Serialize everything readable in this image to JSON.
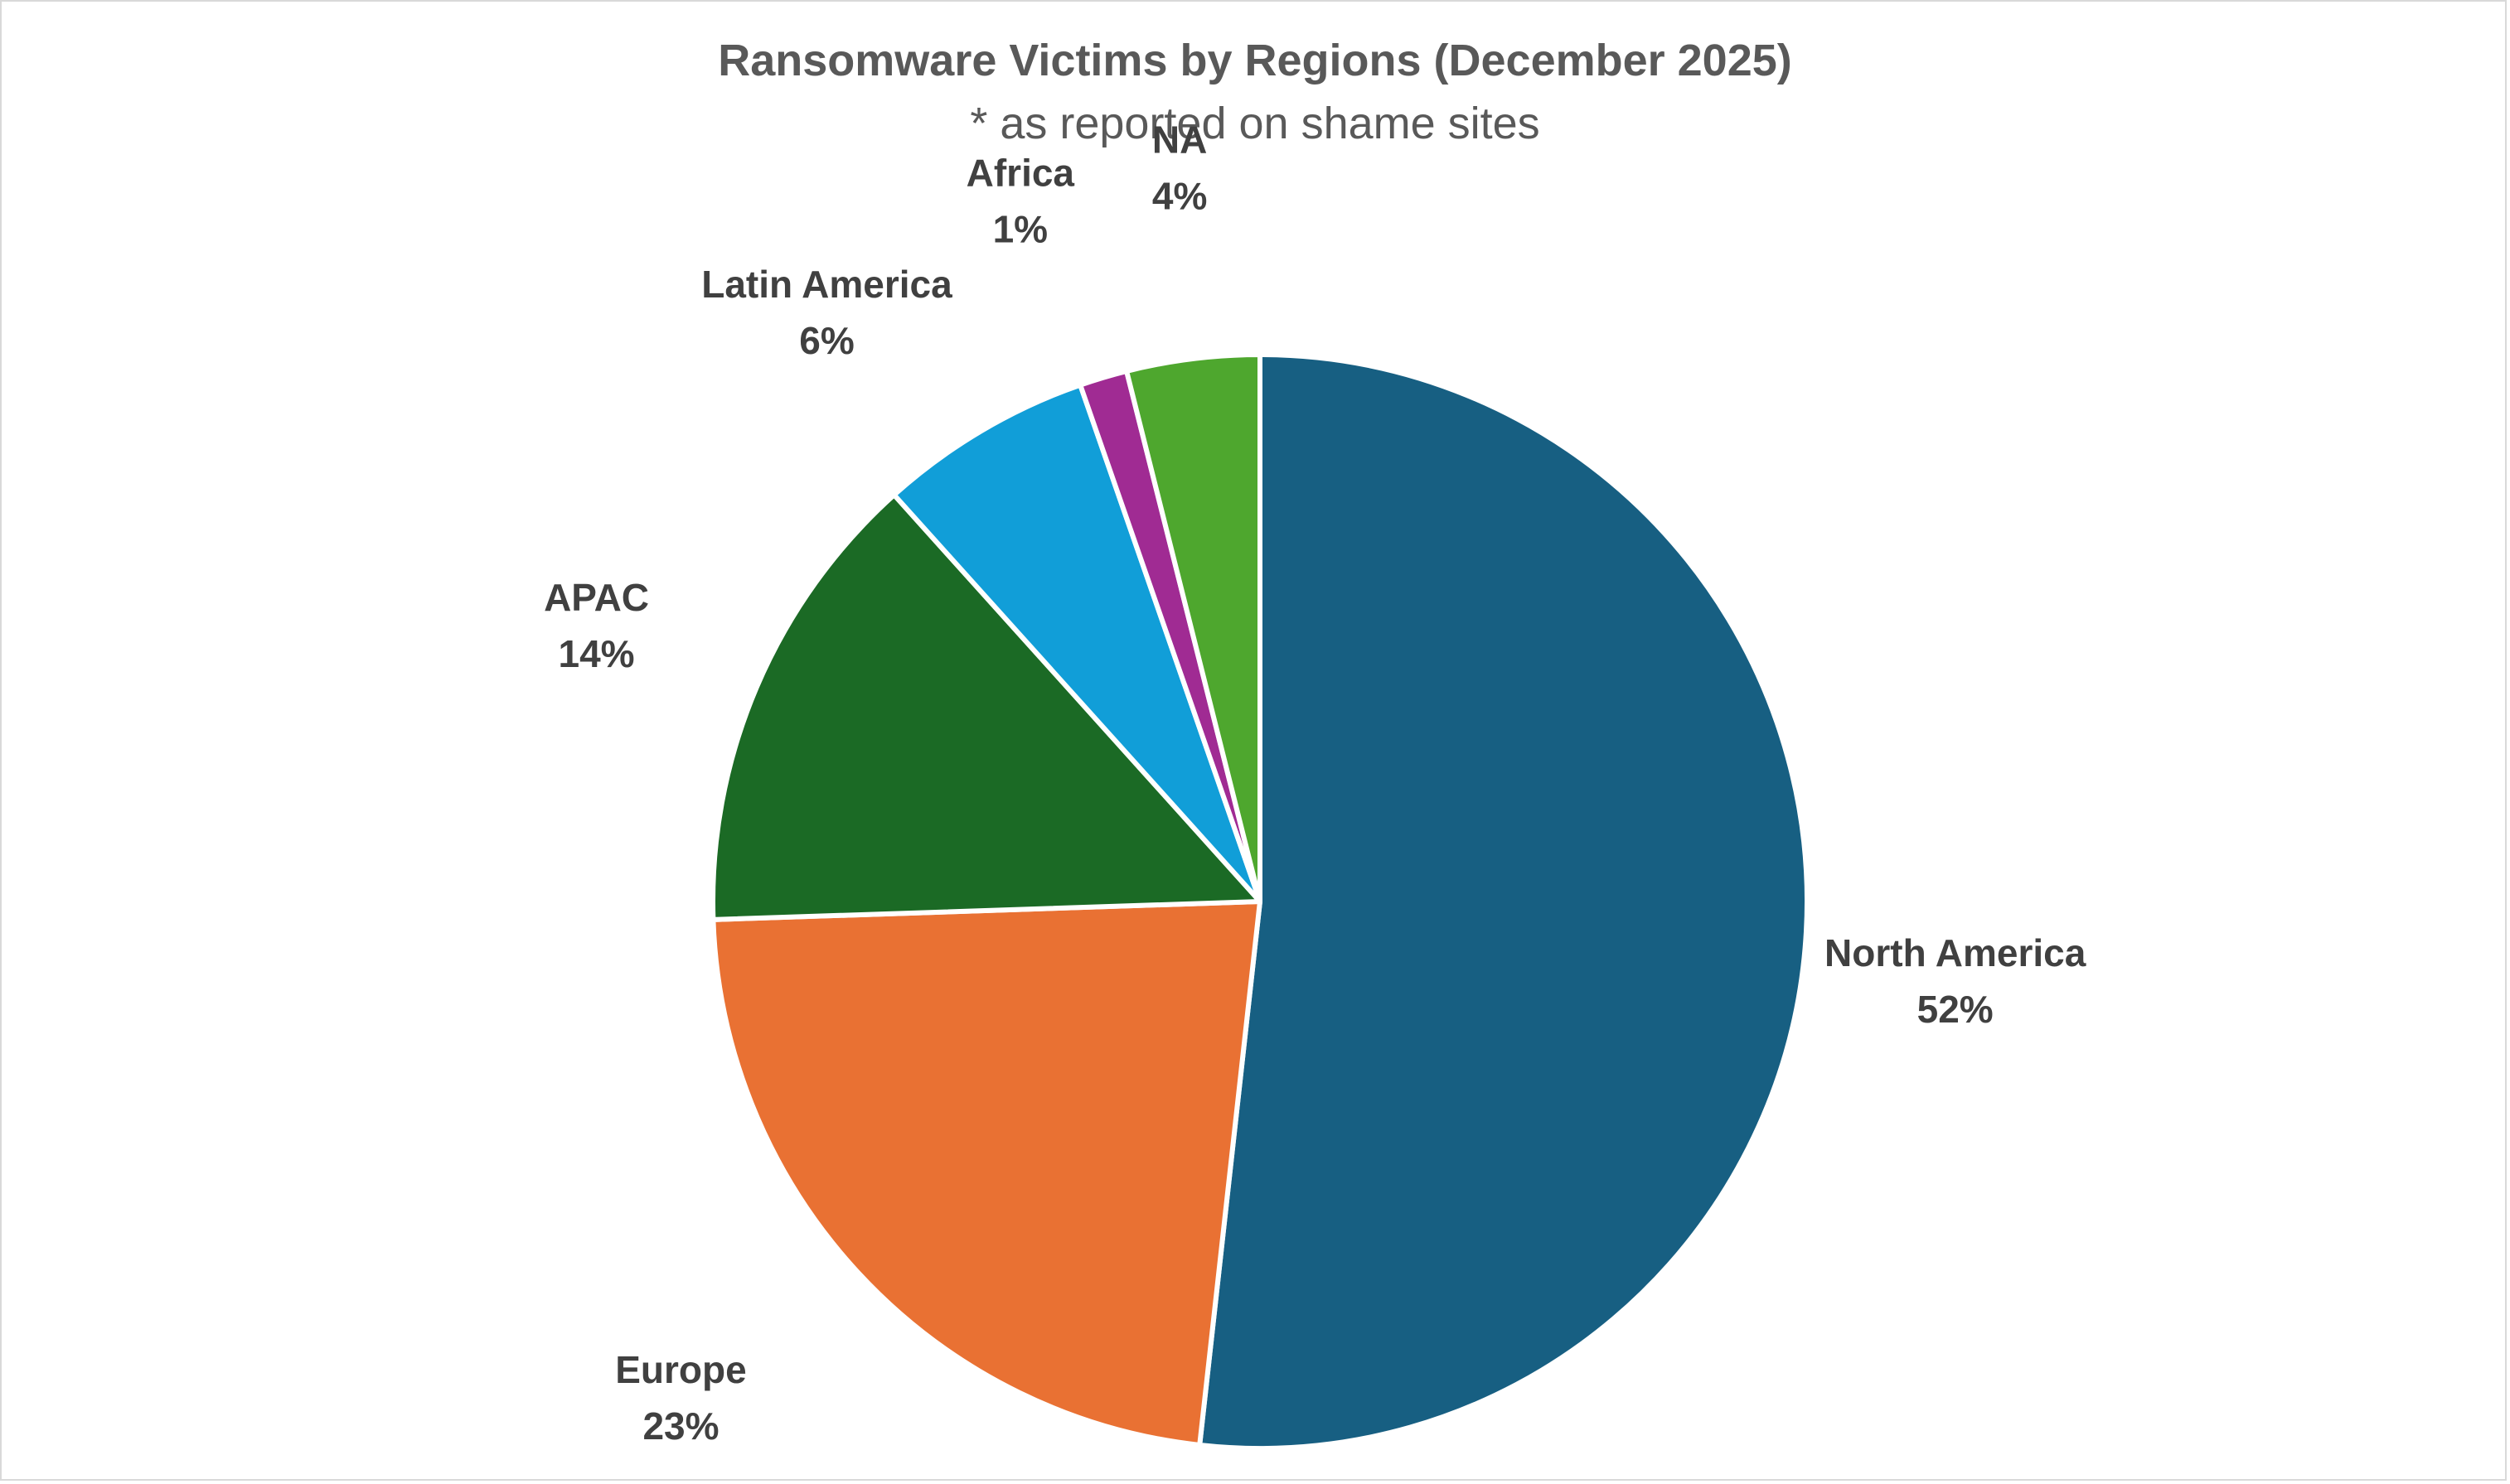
{
  "chart_data": {
    "type": "pie",
    "title": "Ransomware Victims by Regions (December 2025)",
    "subtitle": "* as reported on shame sites",
    "slices": [
      {
        "label": "North America",
        "percent_label": "52%",
        "value": 51.5,
        "color": "#175f82"
      },
      {
        "label": "Europe",
        "percent_label": "23%",
        "value": 22.6,
        "color": "#e97133"
      },
      {
        "label": "APAC",
        "percent_label": "14%",
        "value": 13.8,
        "color": "#1b6a25"
      },
      {
        "label": "Latin America",
        "percent_label": "6%",
        "value": 6.3,
        "color": "#119ed8"
      },
      {
        "label": "Africa",
        "percent_label": "1%",
        "value": 1.4,
        "color": "#a02b93"
      },
      {
        "label": "NA",
        "percent_label": "4%",
        "value": 3.9,
        "color": "#4ea72e"
      }
    ],
    "start": "12 o'clock",
    "direction": "clockwise",
    "legend": "none",
    "data_labels": "outside"
  }
}
